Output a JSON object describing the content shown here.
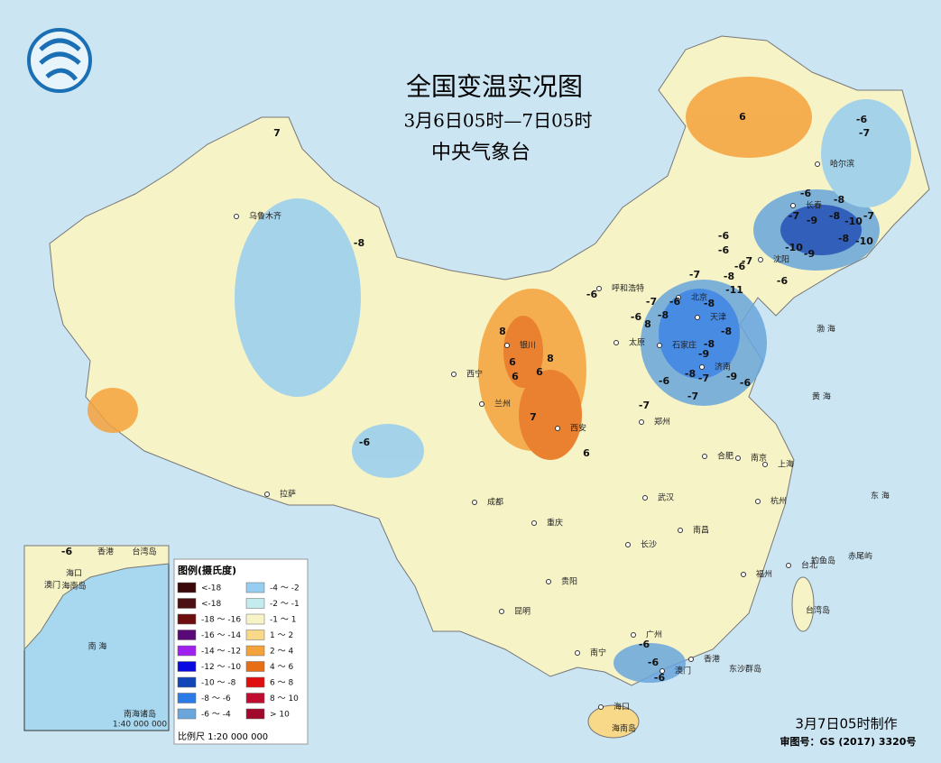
{
  "header": {
    "title": "全国变温实况图",
    "subtitle": "3月6日05时—7日05时",
    "issuer": "中央气象台"
  },
  "legend": {
    "title": "图例(摄氏度)",
    "items": [
      {
        "label": "<-18",
        "color": "#3a0808"
      },
      {
        "label": "<-18",
        "color": "#4c0f12"
      },
      {
        "label": "-18 ～ -16",
        "color": "#6e0d0d"
      },
      {
        "label": "-16 ～ -14",
        "color": "#5a0a78"
      },
      {
        "label": "-14 ～ -12",
        "color": "#a020f0"
      },
      {
        "label": "-12 ～ -10",
        "color": "#0a0ae0"
      },
      {
        "label": "-10 ～ -8",
        "color": "#1046b8"
      },
      {
        "label": "-8 ～ -6",
        "color": "#2a7ae8"
      },
      {
        "label": "-6 ～ -4",
        "color": "#6aa6dc"
      },
      {
        "label": "-4 ～ -2",
        "color": "#96cdf0"
      },
      {
        "label": "-2 ～ -1",
        "color": "#c4ecee"
      },
      {
        "label": "-1 ～ 1",
        "color": "#f6f3c6"
      },
      {
        "label": "1 ～ 2",
        "color": "#f8d98a"
      },
      {
        "label": "2 ～ 4",
        "color": "#f4a23c"
      },
      {
        "label": "4 ～ 6",
        "color": "#e86e16"
      },
      {
        "label": "6 ～ 8",
        "color": "#e01010"
      },
      {
        "label": "8 ～ 10",
        "color": "#c00c30"
      },
      {
        "label": "> 10",
        "color": "#a0082c"
      }
    ]
  },
  "scale": "比例尺   1:20 000 000",
  "footer": {
    "made": "3月7日05时制作",
    "approval": "审图号：GS (2017) 3320号"
  },
  "inset": {
    "labels": [
      "香港",
      "台湾岛",
      "澳门",
      "海口",
      "海南岛",
      "南 海",
      "南海诸岛",
      "1:40 000 000"
    ],
    "temperatures": [
      -6
    ]
  },
  "cities": [
    "乌鲁木齐",
    "拉萨",
    "西宁",
    "兰州",
    "银川",
    "呼和浩特",
    "太原",
    "石家庄",
    "北京",
    "天津",
    "济南",
    "郑州",
    "西安",
    "成都",
    "重庆",
    "武汉",
    "长沙",
    "南昌",
    "合肥",
    "南京",
    "上海",
    "杭州",
    "福州",
    "台北",
    "广州",
    "南宁",
    "贵阳",
    "昆明",
    "海口",
    "香港",
    "澳门",
    "沈阳",
    "长春",
    "哈尔滨",
    "台湾岛",
    "东沙群岛",
    "钓鱼岛",
    "赤尾屿",
    "海南岛",
    "渤 海",
    "黄 海",
    "东 海"
  ],
  "temperatures": [
    7,
    6,
    -6,
    -7,
    -8,
    -6,
    -8,
    -7,
    -9,
    -8,
    -10,
    -7,
    -8,
    -10,
    -10,
    -9,
    -6,
    -6,
    -7,
    -7,
    -6,
    -8,
    -6,
    -6,
    -7,
    -6,
    -11,
    -8,
    -6,
    8,
    -8,
    -8,
    -8,
    8,
    6,
    8,
    6,
    6,
    -9,
    -6,
    -8,
    -7,
    -9,
    -6,
    -7,
    -7,
    7,
    6,
    -6,
    -6,
    -6,
    -6
  ]
}
